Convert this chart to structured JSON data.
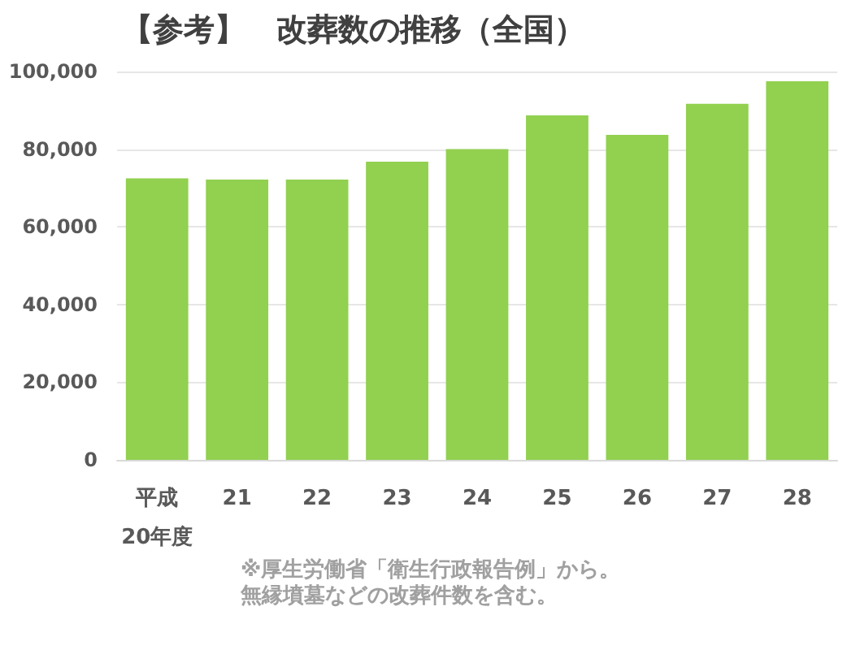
{
  "chart_data": {
    "type": "bar",
    "title": "【参考】　改葬数の推移（全国）",
    "categories": [
      "平成\n20年度",
      "21",
      "22",
      "23",
      "24",
      "25",
      "26",
      "27",
      "28"
    ],
    "values": [
      72500,
      72200,
      72200,
      76800,
      80000,
      88700,
      83700,
      91700,
      97500
    ],
    "color": "#92d050",
    "ylim": [
      0,
      100000
    ],
    "yticks": [
      0,
      {
        "value": 20000,
        "label": "20,000"
      },
      {
        "value": 40000,
        "label": "40,000"
      },
      {
        "value": 60000,
        "label": "60,000"
      },
      {
        "value": 80000,
        "label": "80,000"
      },
      {
        "value": 100000,
        "label": "100,000"
      }
    ],
    "grid": "y",
    "annotations": [
      "※厚生労働省「衛生行政報告例」から。",
      "無縁墳墓などの改葬件数を含む。"
    ]
  }
}
